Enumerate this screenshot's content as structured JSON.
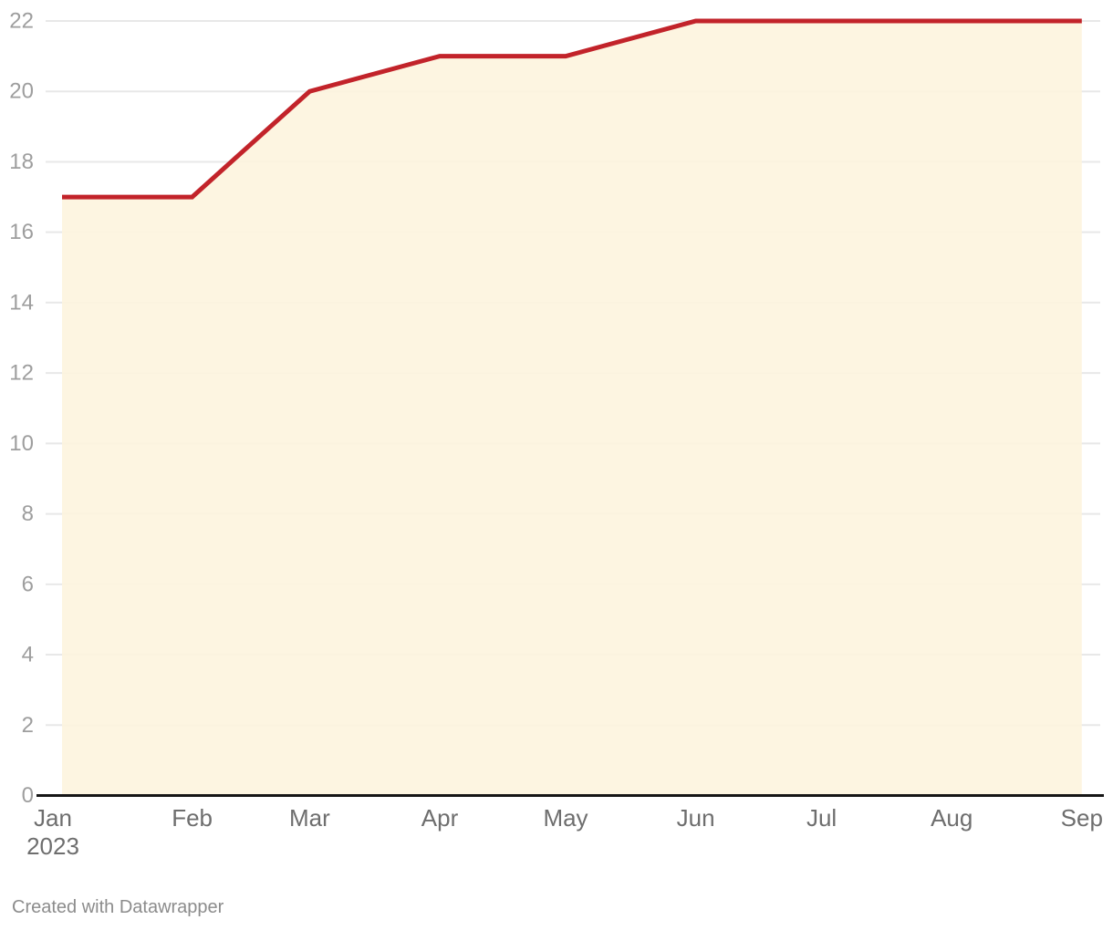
{
  "chart_data": {
    "type": "area",
    "title": "",
    "xlabel": "",
    "ylabel": "",
    "x": [
      "2023-01-01",
      "2023-02-01",
      "2023-03-01",
      "2023-04-01",
      "2023-05-01",
      "2023-06-01",
      "2023-07-01",
      "2023-08-01",
      "2023-09-01"
    ],
    "x_tick_labels": [
      "Jan",
      "Feb",
      "Mar",
      "Apr",
      "May",
      "Jun",
      "Jul",
      "Aug",
      "Sep"
    ],
    "x_first_sub_label": "2023",
    "x_day_offsets": [
      0,
      31,
      59,
      90,
      120,
      151,
      181,
      212,
      243
    ],
    "values": [
      17,
      17,
      20,
      21,
      21,
      22,
      22,
      22,
      22
    ],
    "ylim": [
      0,
      22
    ],
    "y_tick_step": 2,
    "y_tick_labels": [
      "0",
      "2",
      "4",
      "6",
      "8",
      "10",
      "12",
      "14",
      "16",
      "18",
      "20",
      "22"
    ],
    "grid": true,
    "legend": "none",
    "colors": {
      "line": "#c2232a",
      "fill": "#fdf4de",
      "grid": "#e8e8e8",
      "axis": "#161616",
      "y_tick_text": "#9e9e9e",
      "x_tick_text": "#6e6e6e"
    }
  },
  "footer": {
    "credit": "Created with Datawrapper"
  }
}
